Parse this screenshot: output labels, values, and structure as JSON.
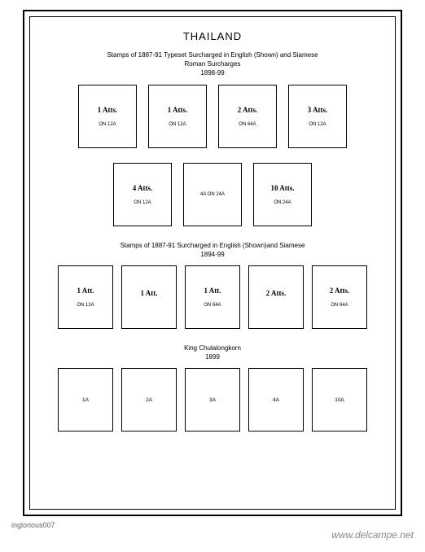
{
  "title": "THAILAND",
  "section1": {
    "line1": "Stamps of 1887-91 Typeset Surcharged in English (Shown) and Siamese",
    "line2": "Roman Surcharges",
    "line3": "1898-99"
  },
  "row1": [
    {
      "main": "1  Atts.",
      "sub": "ON 12A"
    },
    {
      "main": "1  Atts.",
      "sub": "ON 12A"
    },
    {
      "main": "2  Atts.",
      "sub": "ON 64A"
    },
    {
      "main": "3  Atts.",
      "sub": "ON 12A"
    }
  ],
  "row2": [
    {
      "main": "4  Atts.",
      "sub": "ON 12A"
    },
    {
      "main": "",
      "sub": "4A ON 24A"
    },
    {
      "main": "10 Atts.",
      "sub": "ON 24A"
    }
  ],
  "section2": {
    "line1": "Stamps of 1887-91 Surcharged in English (Shown)and Siamese",
    "line2": "1894-99"
  },
  "row3": [
    {
      "main": "1    Att.",
      "sub": "ON 12A"
    },
    {
      "main": "1    Att.",
      "sub": ""
    },
    {
      "main": "1    Att.",
      "sub": "ON 64A"
    },
    {
      "main": "2  Atts.",
      "sub": ""
    },
    {
      "main": "2  Atts.",
      "sub": "ON 64A"
    }
  ],
  "section3": {
    "line1": "King Chulalongkorn",
    "line2": "1899"
  },
  "row4": [
    {
      "label": "1A"
    },
    {
      "label": "2A"
    },
    {
      "label": "3A"
    },
    {
      "label": "4A"
    },
    {
      "label": "10A"
    }
  ],
  "credits": {
    "left": "inglorious007",
    "right": "www.delcampe.net"
  }
}
